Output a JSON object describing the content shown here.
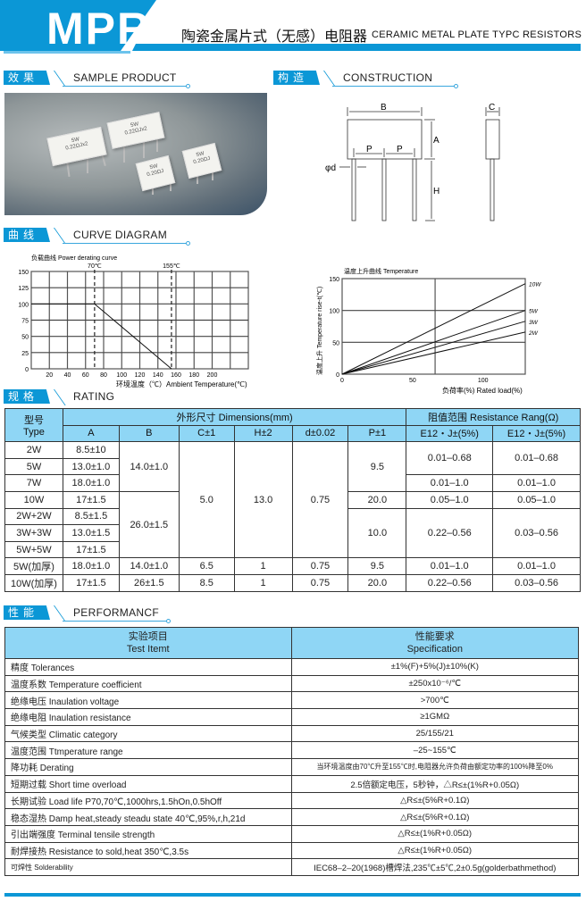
{
  "header": {
    "model": "MPR",
    "title_cn": "陶瓷金属片式（无感）电阻器",
    "title_en": "CERAMIC METAL PLATE TYPC RESISTORS",
    "accent": "#0b97d6",
    "table_header_bg": "#8fd6f5"
  },
  "sections": {
    "sample": {
      "cn": "效果图",
      "en": "SAMPLE PRODUCT"
    },
    "construction": {
      "cn": "构造图",
      "en": "CONSTRUCTION"
    },
    "curve": {
      "cn": "曲线图",
      "en": "CURVE DIAGRAM"
    },
    "rating": {
      "cn": "规格",
      "en": "RATING"
    },
    "performance": {
      "cn": "性能",
      "en": "PERFORMANCF"
    }
  },
  "photo": {
    "labels": [
      [
        "5W",
        "0.22ΩJx2"
      ],
      [
        "5W",
        "0.22ΩJx2"
      ],
      [
        "5W",
        "0.20ΩJ"
      ],
      [
        "5W",
        "0.20ΩJ"
      ]
    ]
  },
  "construction": {
    "labels": {
      "B": "B",
      "A": "A",
      "P1": "P",
      "P2": "P",
      "d": "φd",
      "H": "H",
      "C": "C"
    }
  },
  "chart_data": [
    {
      "type": "line",
      "title": "负载曲线 Power derating curve",
      "xlabel": "环境温度（℃）Ambient Temperature(℃)",
      "ylabel": "",
      "xlim": [
        0,
        240
      ],
      "ylim": [
        0,
        150
      ],
      "grid": true,
      "xticks": [
        20,
        40,
        60,
        80,
        100,
        120,
        140,
        160,
        180,
        200
      ],
      "yticks": [
        0,
        25,
        50,
        75,
        100,
        125,
        150
      ],
      "markers": [
        {
          "x": 70,
          "label": "70℃"
        },
        {
          "x": 155,
          "label": "155℃"
        }
      ],
      "series": [
        {
          "x": [
            0,
            70,
            155
          ],
          "y": [
            100,
            100,
            0
          ]
        }
      ]
    },
    {
      "type": "line",
      "title": "温度上升曲线 Temperature",
      "xlabel": "负荷率(%) Rated load(%)",
      "ylabel": "温度上升 Temperature rise-t(℃)",
      "xlim": [
        0,
        130
      ],
      "ylim": [
        0,
        150
      ],
      "grid": true,
      "xticks": [
        0,
        50,
        100
      ],
      "yticks": [
        0,
        50,
        100,
        150
      ],
      "series": [
        {
          "name": "10W",
          "x": [
            0,
            130
          ],
          "y": [
            0,
            142
          ]
        },
        {
          "name": "5W",
          "x": [
            0,
            130
          ],
          "y": [
            0,
            100
          ]
        },
        {
          "name": "3W",
          "x": [
            0,
            130
          ],
          "y": [
            0,
            83
          ]
        },
        {
          "name": "2W",
          "x": [
            0,
            130
          ],
          "y": [
            0,
            66
          ]
        }
      ]
    }
  ],
  "dimensions": {
    "type_cn": "型号",
    "type_en": "Type",
    "dims_title": "外形尺寸 Dimensions(mm)",
    "res_title": "阻值范围 Resistance Rang(Ω)",
    "cols": [
      "A",
      "B",
      "C±1",
      "H±2",
      "d±0.02",
      "P±1",
      "E12・J±(5%)",
      "E12・J±(5%)"
    ],
    "rows": [
      {
        "type": "2W",
        "A": "8.5±10",
        "B": "14.0±1.0",
        "C": "5.0",
        "H": "13.0",
        "d": "0.75",
        "P": "9.5",
        "R1": "0.01–0.68",
        "R2": "0.01–0.68"
      },
      {
        "type": "5W",
        "A": "13.0±1.0"
      },
      {
        "type": "7W",
        "A": "18.0±1.0",
        "R1": "0.01–1.0",
        "R2": "0.01–1.0"
      },
      {
        "type": "10W",
        "A": "17±1.5",
        "B": "26.0±1.5",
        "P": "20.0",
        "R1": "0.05–1.0",
        "R2": "0.05–1.0"
      },
      {
        "type": "2W+2W",
        "A": "8.5±1.5",
        "P": "10.0",
        "R1": "0.22–0.56",
        "R2": "0.03–0.56"
      },
      {
        "type": "3W+3W",
        "A": "13.0±1.5"
      },
      {
        "type": "5W+5W",
        "A": "17±1.5"
      },
      {
        "type": "5W(加厚)",
        "A": "18.0±1.0",
        "B": "14.0±1.0",
        "C": "6.5",
        "H": "1",
        "d": "0.75",
        "P": "9.5",
        "R1": "0.01–1.0",
        "R2": "0.01–1.0"
      },
      {
        "type": "10W(加厚)",
        "A": "17±1.5",
        "B": "26±1.5",
        "C": "8.5",
        "H": "1",
        "d": "0.75",
        "P": "20.0",
        "R1": "0.22–0.56",
        "R2": "0.03–0.56"
      }
    ]
  },
  "performance": {
    "head_item_cn": "实验项目",
    "head_item_en": "Test Itemt",
    "head_spec_cn": "性能要求",
    "head_spec_en": "Specification",
    "rows": [
      {
        "item": "精度 Tolerances",
        "spec": "±1%(F)+5%(J)±10%(K)"
      },
      {
        "item": "温度系数 Temperature coefficient",
        "spec": "±250x10⁻⁶/℃"
      },
      {
        "item": "绝缘电压 Inaulation voltage",
        "spec": ">700℃"
      },
      {
        "item": "绝缘电阻 Inaulation resistance",
        "spec": "≥1GMΩ"
      },
      {
        "item": "气候类型 Climatic category",
        "spec": "25/155/21"
      },
      {
        "item": "温度范围 Ttmperature range",
        "spec": "–25~155℃"
      },
      {
        "item": "降功耗 Derating",
        "spec": "当环境温度由70℃升至155℃时,电阻器允许负荷由额定功率的100%降至0%"
      },
      {
        "item": "短期过载 Short time overload",
        "spec": "2.5倍额定电压，5秒钟，△R≤±(1%R+0.05Ω)"
      },
      {
        "item": "长期试验 Load life P70,70℃,1000hrs,1.5hOn,0.5hOff",
        "spec": "△R≤±(5%R+0.1Ω)"
      },
      {
        "item": "稳态湿热 Damp heat,steady steadu state 40℃,95%,r,h,21d",
        "spec": "△R≤±(5%R+0.1Ω)"
      },
      {
        "item": "引出端强度 Terminal tensile strength",
        "spec": "△R≤±(1%R+0.05Ω)"
      },
      {
        "item": "耐焊接热 Resistance to sold,heat 350℃,3.5s",
        "spec": "△R≤±(1%R+0.05Ω)"
      },
      {
        "item": "可焊性 Solderability",
        "spec": "IEC68–2–20(1968)槽焊法,235℃±5℃,2±0.5g(golderbathmethod)"
      }
    ]
  }
}
